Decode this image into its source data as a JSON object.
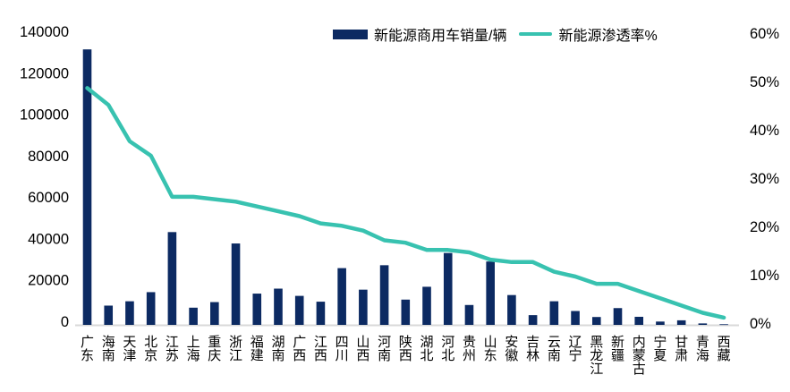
{
  "legend": {
    "sales_label": "新能源商用车销量/辆",
    "penetration_label": "新能源渗透率%"
  },
  "colors": {
    "bar": "#0c2a62",
    "line": "#38c2b0",
    "axis_line": "#d9d9d9",
    "text": "#000000",
    "background": "#ffffff"
  },
  "chart_data": {
    "type": "combo",
    "subtype": "bar+line",
    "title": "",
    "legend_position": "top",
    "grid": false,
    "categories": [
      "广东",
      "海南",
      "天津",
      "北京",
      "江苏",
      "上海",
      "重庆",
      "浙江",
      "福建",
      "湖南",
      "广西",
      "江西",
      "四川",
      "山西",
      "河南",
      "陕西",
      "湖北",
      "河北",
      "贵州",
      "山东",
      "安徽",
      "吉林",
      "云南",
      "辽宁",
      "黑龙江",
      "新疆",
      "内蒙古",
      "宁夏",
      "甘肃",
      "青海",
      "西藏"
    ],
    "series": [
      {
        "name": "新能源商用车销量/辆",
        "type": "bar",
        "axis": "left",
        "values": [
          133000,
          9300,
          11400,
          15800,
          44800,
          8300,
          11000,
          39300,
          15100,
          17500,
          14000,
          11200,
          27400,
          17000,
          28800,
          12200,
          18400,
          34700,
          9600,
          30600,
          14400,
          4700,
          11400,
          6700,
          3800,
          8100,
          3900,
          1600,
          2200,
          700,
          300
        ]
      },
      {
        "name": "新能源渗透率%",
        "type": "line",
        "axis": "right",
        "values": [
          49,
          45.5,
          38,
          35,
          26.5,
          26.5,
          26,
          25.5,
          24.5,
          23.5,
          22.5,
          21,
          20.5,
          19.5,
          17.5,
          17,
          15.5,
          15.5,
          15,
          13.5,
          13,
          13,
          11,
          10,
          8.5,
          8.5,
          7,
          5.5,
          4,
          2.5,
          1.5
        ]
      }
    ],
    "left_axis": {
      "min": 0,
      "max": 140000,
      "tick_step": 20000,
      "tick_labels": [
        "140000",
        "120000",
        "100000",
        "80000",
        "60000",
        "40000",
        "20000",
        "0"
      ]
    },
    "right_axis": {
      "min": 0,
      "max": 60,
      "tick_step": 10,
      "tick_labels": [
        "60%",
        "50%",
        "40%",
        "30%",
        "20%",
        "10%",
        "0%"
      ]
    }
  }
}
